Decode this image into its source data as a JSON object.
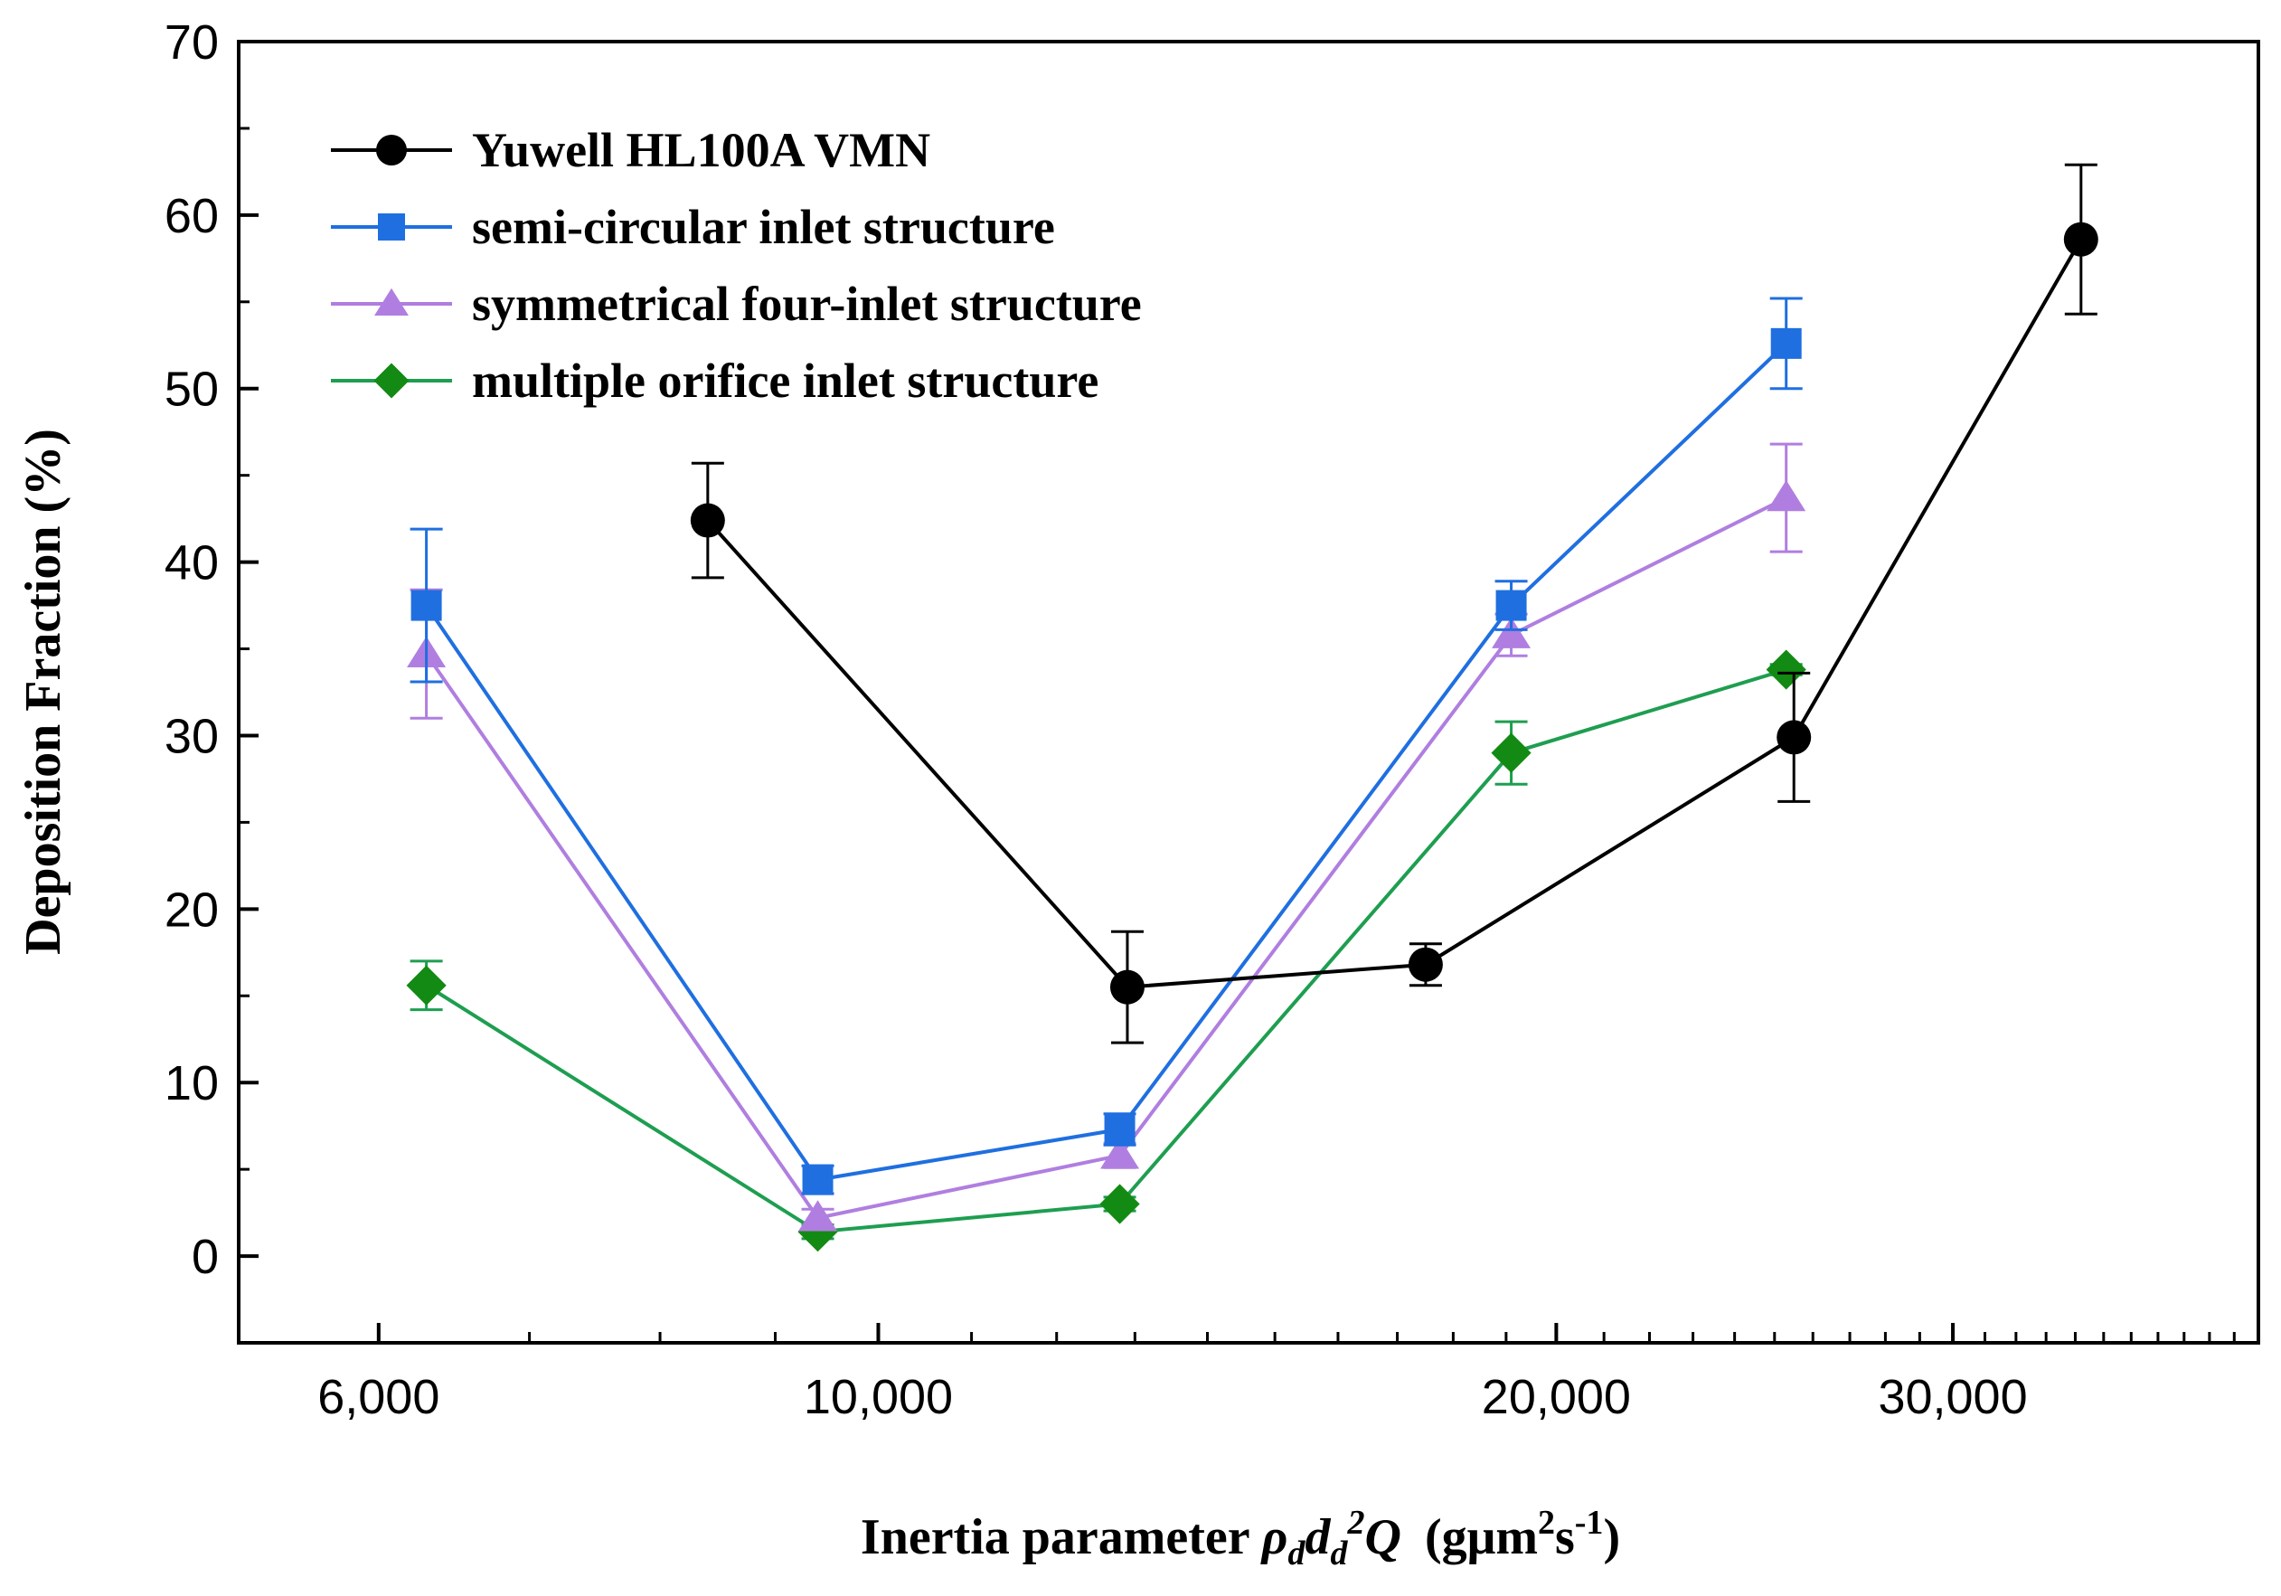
{
  "chart_data": {
    "type": "line",
    "x_scale": "log",
    "xlim": [
      5200,
      41000
    ],
    "ylim": [
      -5,
      70
    ],
    "yticks": [
      0,
      10,
      20,
      30,
      40,
      50,
      60,
      70
    ],
    "yticks_minor": [
      5,
      15,
      25,
      35,
      45,
      55,
      65
    ],
    "xticks": [
      6000,
      10000,
      20000,
      30000
    ],
    "xtick_labels": [
      "6,000",
      "10,000",
      "20,000",
      "30,000"
    ],
    "xticks_minor": [
      7000,
      8000,
      9000,
      11000,
      12000,
      13000,
      14000,
      15000,
      16000,
      17000,
      18000,
      19000,
      21000,
      22000,
      23000,
      24000,
      25000,
      26000,
      27000,
      28000,
      29000,
      31000,
      32000,
      33000,
      34000,
      35000,
      36000,
      37000,
      38000,
      39000,
      40000
    ],
    "ylabel": "Deposition Fraction (%)",
    "xlabel": {
      "prefix": "Inertia parameter ",
      "rho": "ρ",
      "d_sub": "d",
      "d": "d",
      "d_exp": "2",
      "q": "Q",
      "unit_open": "(gμm",
      "unit_exp1": "2",
      "unit_s": "s",
      "unit_exp2": "-1",
      "unit_close": ")"
    },
    "legend_position": "top-left",
    "series": [
      {
        "name": "Yuwell HL100A VMN",
        "color": "#000000",
        "marker": "circle",
        "x": [
          8400,
          12900,
          17500,
          25500,
          34200
        ],
        "y": [
          42.4,
          15.5,
          16.8,
          29.9,
          58.6
        ],
        "err": [
          3.3,
          3.2,
          1.2,
          3.7,
          4.3
        ]
      },
      {
        "name": "semi-circular inlet structure",
        "color": "#1f6fe0",
        "marker": "square",
        "x": [
          6300,
          9400,
          12800,
          19100,
          25300
        ],
        "y": [
          37.5,
          4.4,
          7.3,
          37.5,
          52.6
        ],
        "err": [
          4.4,
          0.8,
          0.9,
          1.4,
          2.6
        ]
      },
      {
        "name": "symmetrical four-inlet structure",
        "color": "#b07ee0",
        "marker": "triangle",
        "x": [
          6300,
          9400,
          12800,
          19100,
          25300
        ],
        "y": [
          34.7,
          2.2,
          5.8,
          35.8,
          43.7
        ],
        "err": [
          3.7,
          0.5,
          0.7,
          1.2,
          3.1
        ]
      },
      {
        "name": "multiple orifice inlet structure",
        "color": "#1e9e50",
        "marker_color": "#138a13",
        "marker": "diamond",
        "x": [
          6300,
          9400,
          12800,
          19100,
          25300
        ],
        "y": [
          15.6,
          1.4,
          3.0,
          29.0,
          33.8
        ],
        "err": [
          1.4,
          0.4,
          0.4,
          1.8,
          0.3
        ]
      }
    ]
  }
}
